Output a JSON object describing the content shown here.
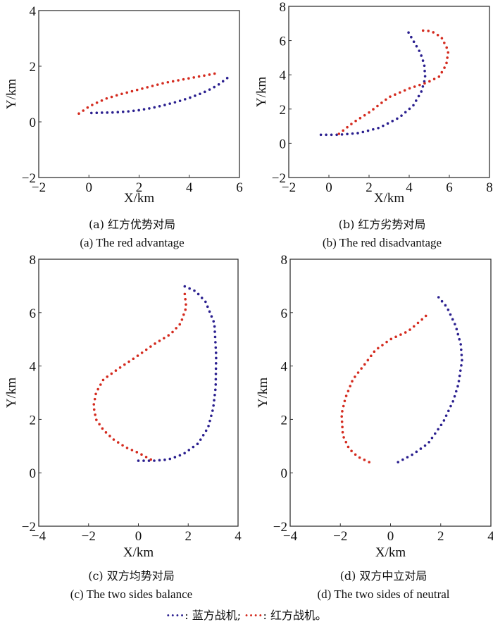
{
  "chart_data": [
    {
      "type": "line",
      "title_cn": "(a) 红方优势对局",
      "title_en": "(a) The red advantage",
      "xlabel": "X/km",
      "ylabel": "Y/km",
      "xlim": [
        -2,
        6
      ],
      "ylim": [
        -2,
        4
      ],
      "xticks": [
        -2,
        0,
        2,
        4,
        6
      ],
      "yticks": [
        -2,
        0,
        2,
        4
      ],
      "series": [
        {
          "name": "blue",
          "color": "#2a1f8f",
          "points": [
            [
              0.1,
              0.32
            ],
            [
              0.5,
              0.33
            ],
            [
              1.0,
              0.34
            ],
            [
              1.5,
              0.37
            ],
            [
              2.0,
              0.42
            ],
            [
              2.5,
              0.5
            ],
            [
              3.0,
              0.6
            ],
            [
              3.5,
              0.72
            ],
            [
              4.0,
              0.86
            ],
            [
              4.5,
              1.03
            ],
            [
              4.9,
              1.2
            ],
            [
              5.2,
              1.36
            ],
            [
              5.55,
              1.6
            ]
          ]
        },
        {
          "name": "red",
          "color": "#d42a1e",
          "points": [
            [
              -0.4,
              0.3
            ],
            [
              -0.2,
              0.42
            ],
            [
              0.0,
              0.55
            ],
            [
              0.3,
              0.68
            ],
            [
              0.7,
              0.84
            ],
            [
              1.2,
              0.98
            ],
            [
              1.8,
              1.12
            ],
            [
              2.4,
              1.26
            ],
            [
              3.0,
              1.4
            ],
            [
              3.6,
              1.5
            ],
            [
              4.2,
              1.6
            ],
            [
              4.7,
              1.68
            ],
            [
              5.1,
              1.75
            ]
          ]
        }
      ]
    },
    {
      "type": "line",
      "title_cn": "(b) 红方劣势对局",
      "title_en": "(b) The red disadvantage",
      "xlabel": "X/km",
      "ylabel": "Y/km",
      "xlim": [
        -2,
        8
      ],
      "ylim": [
        -2,
        8
      ],
      "xticks": [
        -2,
        0,
        2,
        4,
        6,
        8
      ],
      "yticks": [
        -2,
        0,
        2,
        4,
        6,
        8
      ],
      "series": [
        {
          "name": "blue",
          "color": "#2a1f8f",
          "points": [
            [
              -0.4,
              0.5
            ],
            [
              0.5,
              0.5
            ],
            [
              1.5,
              0.6
            ],
            [
              2.5,
              0.9
            ],
            [
              3.5,
              1.5
            ],
            [
              4.2,
              2.2
            ],
            [
              4.6,
              3.0
            ],
            [
              4.8,
              3.8
            ],
            [
              4.75,
              4.6
            ],
            [
              4.55,
              5.3
            ],
            [
              4.25,
              5.9
            ],
            [
              3.9,
              6.6
            ]
          ]
        },
        {
          "name": "red",
          "color": "#d42a1e",
          "points": [
            [
              0.5,
              0.55
            ],
            [
              1.2,
              1.2
            ],
            [
              2.0,
              1.8
            ],
            [
              3.0,
              2.7
            ],
            [
              4.0,
              3.2
            ],
            [
              4.9,
              3.55
            ],
            [
              5.5,
              3.9
            ],
            [
              5.85,
              4.6
            ],
            [
              5.95,
              5.4
            ],
            [
              5.6,
              6.2
            ],
            [
              5.1,
              6.55
            ],
            [
              4.5,
              6.6
            ]
          ]
        }
      ]
    },
    {
      "type": "line",
      "title_cn": "(c) 双方均势对局",
      "title_en": "(c) The two sides balance",
      "xlabel": "X/km",
      "ylabel": "Y/km",
      "xlim": [
        -4,
        4
      ],
      "ylim": [
        -2,
        8
      ],
      "xticks": [
        -4,
        -2,
        0,
        2,
        4
      ],
      "yticks": [
        -2,
        0,
        2,
        4,
        6,
        8
      ],
      "series": [
        {
          "name": "blue",
          "color": "#2a1f8f",
          "points": [
            [
              0.0,
              0.45
            ],
            [
              0.6,
              0.45
            ],
            [
              1.2,
              0.5
            ],
            [
              1.8,
              0.7
            ],
            [
              2.4,
              1.1
            ],
            [
              2.8,
              1.7
            ],
            [
              3.0,
              2.4
            ],
            [
              3.1,
              3.2
            ],
            [
              3.12,
              4.4
            ],
            [
              3.05,
              5.6
            ],
            [
              2.7,
              6.4
            ],
            [
              2.3,
              6.8
            ],
            [
              1.7,
              7.05
            ]
          ]
        },
        {
          "name": "red",
          "color": "#d42a1e",
          "points": [
            [
              0.5,
              0.5
            ],
            [
              0.0,
              0.75
            ],
            [
              -0.5,
              0.95
            ],
            [
              -1.0,
              1.25
            ],
            [
              -1.4,
              1.6
            ],
            [
              -1.7,
              2.0
            ],
            [
              -1.8,
              2.5
            ],
            [
              -1.7,
              3.0
            ],
            [
              -1.4,
              3.5
            ],
            [
              -0.8,
              3.9
            ],
            [
              0.0,
              4.4
            ],
            [
              0.6,
              4.8
            ],
            [
              1.3,
              5.2
            ],
            [
              1.7,
              5.6
            ],
            [
              1.92,
              6.2
            ],
            [
              1.85,
              6.8
            ]
          ]
        }
      ]
    },
    {
      "type": "line",
      "title_cn": "(d) 双方中立对局",
      "title_en": "(d) The two sides of neutral",
      "xlabel": "X/km",
      "ylabel": "Y/km",
      "xlim": [
        -4,
        4
      ],
      "ylim": [
        -2,
        8
      ],
      "xticks": [
        -4,
        -2,
        0,
        2,
        4
      ],
      "yticks": [
        -2,
        0,
        2,
        4,
        6,
        8
      ],
      "series": [
        {
          "name": "blue",
          "color": "#2a1f8f",
          "points": [
            [
              0.3,
              0.4
            ],
            [
              0.9,
              0.7
            ],
            [
              1.5,
              1.1
            ],
            [
              2.1,
              1.9
            ],
            [
              2.5,
              2.7
            ],
            [
              2.7,
              3.3
            ],
            [
              2.85,
              4.2
            ],
            [
              2.8,
              4.8
            ],
            [
              2.6,
              5.5
            ],
            [
              2.25,
              6.2
            ],
            [
              1.85,
              6.65
            ]
          ]
        },
        {
          "name": "red",
          "color": "#d42a1e",
          "points": [
            [
              -0.85,
              0.4
            ],
            [
              -1.3,
              0.6
            ],
            [
              -1.65,
              0.9
            ],
            [
              -1.9,
              1.4
            ],
            [
              -1.95,
              2.2
            ],
            [
              -1.8,
              2.8
            ],
            [
              -1.5,
              3.5
            ],
            [
              -1.0,
              4.1
            ],
            [
              -0.6,
              4.6
            ],
            [
              0.0,
              5.0
            ],
            [
              0.7,
              5.3
            ],
            [
              1.2,
              5.7
            ],
            [
              1.55,
              6.0
            ]
          ]
        }
      ]
    }
  ],
  "legend": {
    "blue_marker": "····",
    "blue_label": ": 蓝方战机;",
    "red_marker": "····",
    "red_label": ": 红方战机。"
  }
}
